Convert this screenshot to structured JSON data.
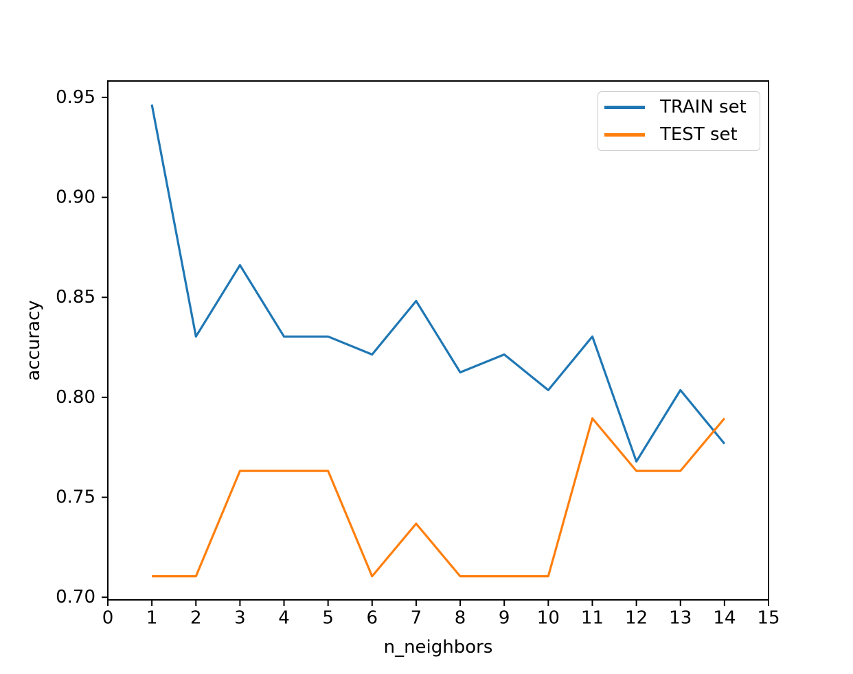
{
  "figure": {
    "background": "#ffffff"
  },
  "legend": {
    "position": "upper right",
    "entries": [
      {
        "label": "TRAIN set",
        "color": "#1f77b4"
      },
      {
        "label": "TEST set",
        "color": "#ff7f0e"
      }
    ]
  },
  "chart_data": {
    "type": "line",
    "title": "",
    "xlabel": "n_neighbors",
    "ylabel": "accuracy",
    "x": [
      1,
      2,
      3,
      4,
      5,
      6,
      7,
      8,
      9,
      10,
      11,
      12,
      13,
      14
    ],
    "series": [
      {
        "name": "TRAIN set",
        "color": "#1f77b4",
        "values": [
          0.9464,
          0.8304,
          0.8661,
          0.8304,
          0.8304,
          0.8214,
          0.8482,
          0.8125,
          0.8214,
          0.8036,
          0.8304,
          0.7679,
          0.8036,
          0.7768
        ]
      },
      {
        "name": "TEST set",
        "color": "#ff7f0e",
        "values": [
          0.7105,
          0.7105,
          0.7632,
          0.7632,
          0.7632,
          0.7105,
          0.7368,
          0.7105,
          0.7105,
          0.7105,
          0.7895,
          0.7632,
          0.7632,
          0.7895
        ]
      }
    ],
    "xlim": [
      0,
      15
    ],
    "ylim": [
      0.6987,
      0.9582
    ],
    "xticks": [
      0,
      1,
      2,
      3,
      4,
      5,
      6,
      7,
      8,
      9,
      10,
      11,
      12,
      13,
      14,
      15
    ],
    "xticklabels": [
      "0",
      "1",
      "2",
      "3",
      "4",
      "5",
      "6",
      "7",
      "8",
      "9",
      "10",
      "11",
      "12",
      "13",
      "14",
      "15"
    ],
    "yticks": [
      0.7,
      0.75,
      0.8,
      0.85,
      0.9,
      0.95
    ],
    "yticklabels": [
      "0.70",
      "0.75",
      "0.80",
      "0.85",
      "0.90",
      "0.95"
    ],
    "grid": false,
    "legend_position": "upper right"
  }
}
